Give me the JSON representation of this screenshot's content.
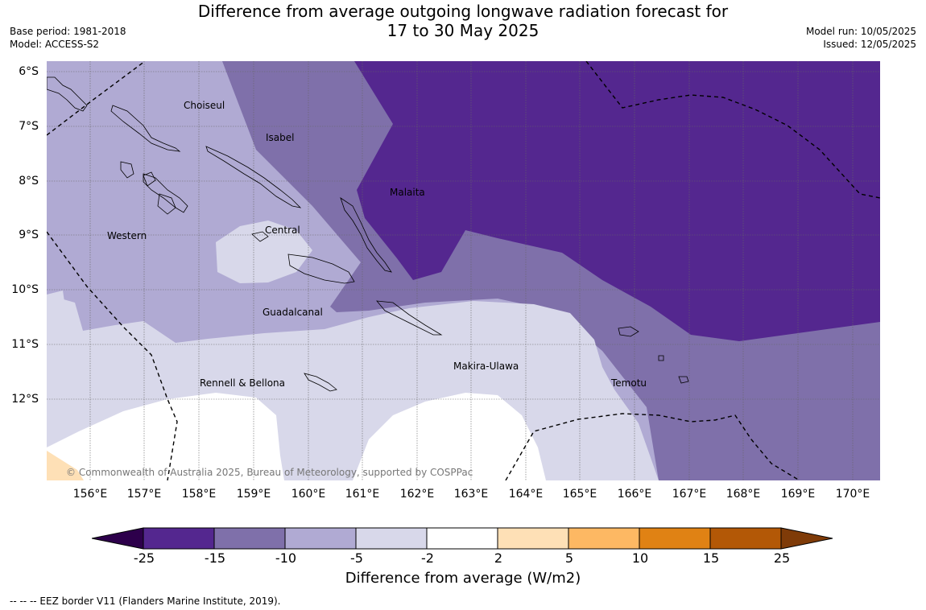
{
  "header": {
    "title_line1": "Difference from average outgoing longwave radiation forecast for",
    "title_line2": "17 to 30 May 2025",
    "base_period": "Base period: 1981-2018",
    "model": "Model: ACCESS-S2",
    "model_run": "Model run: 10/05/2025",
    "issued": "Issued: 12/05/2025"
  },
  "map": {
    "lat_labels": [
      "6°S",
      "7°S",
      "8°S",
      "9°S",
      "10°S",
      "11°S",
      "12°S"
    ],
    "lon_labels": [
      "156°E",
      "157°E",
      "158°E",
      "159°E",
      "160°E",
      "161°E",
      "162°E",
      "163°E",
      "164°E",
      "165°E",
      "166°E",
      "167°E",
      "168°E",
      "169°E",
      "170°E"
    ],
    "regions": {
      "choiseul": "Choiseul",
      "isabel": "Isabel",
      "malaita": "Malaita",
      "central": "Central",
      "western": "Western",
      "guadalcanal": "Guadalcanal",
      "makira": "Makira-Ulawa",
      "rennell": "Rennell & Bellona",
      "temotu": "Temotu"
    },
    "copyright": "© Commonwealth of Australia 2025, Bureau of Meteorology, supported by COSPPac",
    "colors": {
      "lt_m15": "#54278f",
      "m15_m10": "#7f70aa",
      "m10_m5": "#b0aad3",
      "m5_m2": "#d8d8ea",
      "m2_2": "#ffffff",
      "p2_p5": "#fee0b6",
      "p5_p10": "#fdb863",
      "p10_p15": "#e08214",
      "p15_p25": "#b35806",
      "lt_m25": "#2d004b",
      "gt_25": "#7f3b08"
    }
  },
  "colorbar": {
    "ticks": [
      "-25",
      "-15",
      "-10",
      "-5",
      "-2",
      "2",
      "5",
      "10",
      "15",
      "25"
    ],
    "label": "Difference from average (W/m2)",
    "colors": [
      "#2d004b",
      "#54278f",
      "#7f70aa",
      "#b0aad3",
      "#d8d8ea",
      "#ffffff",
      "#fee0b6",
      "#fdb863",
      "#e08214",
      "#b35806",
      "#7f3b08"
    ]
  },
  "footer": {
    "eez_note": "-- -- -- EEZ border V11 (Flanders Marine Institute, 2019)."
  }
}
